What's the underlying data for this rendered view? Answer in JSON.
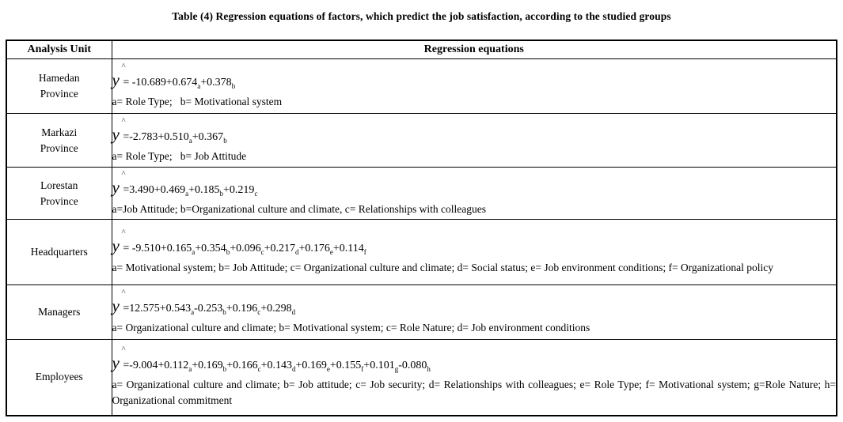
{
  "title": "Table (4) Regression equations of factors, which predict the job satisfaction, according to the studied groups",
  "colors": {
    "text": "#000000",
    "border": "#000000",
    "background": "#ffffff"
  },
  "table": {
    "col_headers": [
      "Analysis Unit",
      "Regression equations"
    ],
    "hat_symbol": "^",
    "y_symbol": "y",
    "rows": [
      {
        "unit": "Hamedan\nProvince",
        "equation": "= -10.689+0.674_a+0.378_b",
        "legend": "a= Role Type;   b= Motivational system"
      },
      {
        "unit": "Markazi\nProvince",
        "equation": "=-2.783+0.510_a+0.367_b",
        "legend": "a= Role Type;   b= Job Attitude"
      },
      {
        "unit": "Lorestan\nProvince",
        "equation": "=3.490+0.469_a+0.185_b+0.219_c",
        "legend": "a=Job Attitude; b=Organizational culture and climate, c= Relationships with colleagues"
      },
      {
        "unit": "Headquarters",
        "equation": "= -9.510+0.165_a+0.354_b+0.096_c+0.217_d+0.176_e+0.114_f",
        "legend": "a= Motivational system; b= Job Attitude; c= Organizational culture and climate; d= Social status; e= Job environment conditions; f= Organizational policy"
      },
      {
        "unit": "Managers",
        "equation": "=12.575+0.543_a-0.253_b+0.196_c+0.298_d",
        "legend": "a= Organizational culture and climate; b= Motivational system; c= Role Nature; d= Job environment conditions"
      },
      {
        "unit": "Employees",
        "equation": "=-9.004+0.112_a+0.169_b+0.166_c+0.143_d+0.169_e+0.155_f+0.101_g-0.080_h",
        "legend": "a= Organizational culture and climate; b= Job attitude; c= Job security; d= Relationships with colleagues; e= Role Type; f= Motivational system; g=Role Nature; h= Organizational commitment"
      }
    ]
  }
}
